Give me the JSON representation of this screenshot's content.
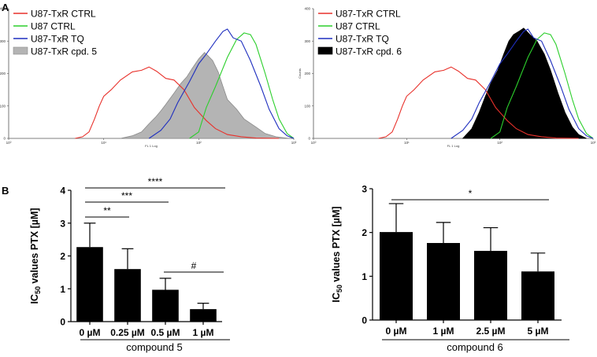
{
  "panel_labels": {
    "a": "A",
    "b": "B"
  },
  "chart_data": [
    {
      "type": "line",
      "panel": "A",
      "ylabel": "Counts",
      "xlabel": "FL 1 Log",
      "xscale": "log",
      "xlim": [
        1,
        1000
      ],
      "ylim": [
        0,
        400
      ],
      "x_ticks": [
        "10⁰",
        "10¹",
        "10²",
        "10³"
      ],
      "y_ticks": [
        "0",
        "100",
        "200",
        "300",
        "400"
      ],
      "legend_position": "top-left",
      "series": [
        {
          "name": "U87-TxR CTRL",
          "color": "#e8312b",
          "fill": false,
          "points": [
            [
              5,
              0
            ],
            [
              6,
              5
            ],
            [
              7,
              20
            ],
            [
              8,
              60
            ],
            [
              9,
              100
            ],
            [
              10,
              130
            ],
            [
              12,
              150
            ],
            [
              15,
              180
            ],
            [
              20,
              205
            ],
            [
              25,
              210
            ],
            [
              30,
              220
            ],
            [
              36,
              207
            ],
            [
              45,
              185
            ],
            [
              55,
              180
            ],
            [
              70,
              150
            ],
            [
              90,
              95
            ],
            [
              120,
              55
            ],
            [
              150,
              30
            ],
            [
              200,
              12
            ],
            [
              280,
              5
            ],
            [
              400,
              1
            ],
            [
              700,
              0
            ]
          ]
        },
        {
          "name": "U87 CTRL",
          "color": "#2ccf2c",
          "fill": false,
          "points": [
            [
              80,
              0
            ],
            [
              100,
              20
            ],
            [
              120,
              95
            ],
            [
              150,
              160
            ],
            [
              200,
              250
            ],
            [
              250,
              305
            ],
            [
              300,
              325
            ],
            [
              350,
              320
            ],
            [
              400,
              290
            ],
            [
              500,
              200
            ],
            [
              600,
              120
            ],
            [
              700,
              60
            ],
            [
              850,
              15
            ],
            [
              1000,
              0
            ]
          ]
        },
        {
          "name": "U87-TxR TQ",
          "color": "#1f2fbf",
          "fill": false,
          "points": [
            [
              30,
              0
            ],
            [
              40,
              25
            ],
            [
              50,
              60
            ],
            [
              60,
              110
            ],
            [
              80,
              175
            ],
            [
              100,
              230
            ],
            [
              120,
              260
            ],
            [
              150,
              300
            ],
            [
              180,
              330
            ],
            [
              200,
              337
            ],
            [
              230,
              310
            ],
            [
              280,
              300
            ],
            [
              350,
              240
            ],
            [
              450,
              160
            ],
            [
              550,
              90
            ],
            [
              700,
              30
            ],
            [
              850,
              8
            ],
            [
              1000,
              0
            ]
          ]
        },
        {
          "name": "U87-TxR cpd. 5",
          "color": "#b4b4b4",
          "fill": true,
          "points": [
            [
              15,
              0
            ],
            [
              20,
              8
            ],
            [
              25,
              20
            ],
            [
              30,
              45
            ],
            [
              35,
              65
            ],
            [
              40,
              85
            ],
            [
              45,
              105
            ],
            [
              55,
              140
            ],
            [
              65,
              170
            ],
            [
              75,
              190
            ],
            [
              85,
              215
            ],
            [
              100,
              245
            ],
            [
              115,
              265
            ],
            [
              125,
              255
            ],
            [
              140,
              240
            ],
            [
              160,
              205
            ],
            [
              180,
              160
            ],
            [
              200,
              120
            ],
            [
              250,
              90
            ],
            [
              300,
              60
            ],
            [
              400,
              35
            ],
            [
              500,
              15
            ],
            [
              650,
              5
            ],
            [
              900,
              0
            ]
          ]
        }
      ]
    },
    {
      "type": "line",
      "panel": "A",
      "ylabel": "Counts",
      "xlabel": "FL 1 Log",
      "xscale": "log",
      "xlim": [
        1,
        1000
      ],
      "ylim": [
        0,
        400
      ],
      "x_ticks": [
        "10⁰",
        "10¹",
        "10²",
        "10³"
      ],
      "y_ticks": [
        "0",
        "100",
        "200",
        "300",
        "400"
      ],
      "legend_position": "top-left",
      "series": [
        {
          "name": "U87-TxR CTRL",
          "color": "#e8312b",
          "fill": false,
          "points": [
            [
              5,
              0
            ],
            [
              6,
              5
            ],
            [
              7,
              20
            ],
            [
              8,
              60
            ],
            [
              9,
              100
            ],
            [
              10,
              130
            ],
            [
              12,
              150
            ],
            [
              15,
              180
            ],
            [
              20,
              205
            ],
            [
              25,
              210
            ],
            [
              30,
              220
            ],
            [
              36,
              207
            ],
            [
              45,
              185
            ],
            [
              55,
              180
            ],
            [
              70,
              150
            ],
            [
              90,
              95
            ],
            [
              120,
              55
            ],
            [
              150,
              30
            ],
            [
              200,
              12
            ],
            [
              280,
              5
            ],
            [
              400,
              1
            ],
            [
              700,
              0
            ]
          ]
        },
        {
          "name": "U87 CTRL",
          "color": "#2ccf2c",
          "fill": false,
          "points": [
            [
              80,
              0
            ],
            [
              100,
              20
            ],
            [
              120,
              95
            ],
            [
              150,
              160
            ],
            [
              200,
              250
            ],
            [
              250,
              305
            ],
            [
              300,
              325
            ],
            [
              350,
              320
            ],
            [
              400,
              290
            ],
            [
              500,
              200
            ],
            [
              600,
              120
            ],
            [
              700,
              60
            ],
            [
              850,
              15
            ],
            [
              1000,
              0
            ]
          ]
        },
        {
          "name": "U87-TxR TQ",
          "color": "#1f2fbf",
          "fill": false,
          "points": [
            [
              30,
              0
            ],
            [
              40,
              25
            ],
            [
              50,
              60
            ],
            [
              60,
              110
            ],
            [
              80,
              175
            ],
            [
              100,
              230
            ],
            [
              120,
              260
            ],
            [
              150,
              300
            ],
            [
              180,
              330
            ],
            [
              200,
              337
            ],
            [
              230,
              310
            ],
            [
              280,
              300
            ],
            [
              350,
              240
            ],
            [
              450,
              160
            ],
            [
              550,
              90
            ],
            [
              700,
              30
            ],
            [
              850,
              8
            ],
            [
              1000,
              0
            ]
          ]
        },
        {
          "name": "U87-TxR cpd. 6",
          "color": "#000000",
          "fill": true,
          "points": [
            [
              40,
              0
            ],
            [
              50,
              30
            ],
            [
              60,
              80
            ],
            [
              70,
              130
            ],
            [
              80,
              170
            ],
            [
              95,
              210
            ],
            [
              110,
              260
            ],
            [
              125,
              300
            ],
            [
              140,
              320
            ],
            [
              160,
              330
            ],
            [
              180,
              340
            ],
            [
              210,
              320
            ],
            [
              250,
              300
            ],
            [
              300,
              260
            ],
            [
              350,
              210
            ],
            [
              420,
              140
            ],
            [
              500,
              80
            ],
            [
              600,
              35
            ],
            [
              700,
              12
            ],
            [
              850,
              0
            ]
          ]
        }
      ]
    },
    {
      "type": "bar",
      "panel": "B",
      "ylabel": "IC50 values PTX [µM]",
      "ylabel_main": "IC",
      "ylabel_sub": "50",
      "ylabel_rest": " values PTX [µM]",
      "xlabel": "compound 5",
      "categories": [
        "0 µM",
        "0.25 µM",
        "0.5 µM",
        "1 µM"
      ],
      "values": [
        2.27,
        1.6,
        0.97,
        0.38
      ],
      "errors": [
        0.73,
        0.62,
        0.35,
        0.18
      ],
      "ylim": [
        0,
        4
      ],
      "y_ticks": [
        "0",
        "1",
        "2",
        "3",
        "4"
      ],
      "bar_color": "#000000",
      "significance": [
        {
          "from": 0,
          "to": 1,
          "label": "**"
        },
        {
          "from": 0,
          "to": 2,
          "label": "***"
        },
        {
          "from": 0,
          "to": 3,
          "label": "****"
        },
        {
          "from": 2,
          "to": 3,
          "label": "#"
        }
      ]
    },
    {
      "type": "bar",
      "panel": "B",
      "ylabel": "IC50 values PTX [µM]",
      "ylabel_main": "IC",
      "ylabel_sub": "50",
      "ylabel_rest": " values PTX [µM]",
      "xlabel": "compound 6",
      "categories": [
        "0 µM",
        "1 µM",
        "2.5 µM",
        "5 µM"
      ],
      "values": [
        2.01,
        1.76,
        1.58,
        1.11
      ],
      "errors": [
        0.65,
        0.47,
        0.53,
        0.42
      ],
      "ylim": [
        0,
        3
      ],
      "y_ticks": [
        "0",
        "1",
        "2",
        "3"
      ],
      "bar_color": "#000000",
      "significance": [
        {
          "from": 0,
          "to": 3,
          "label": "*"
        }
      ]
    }
  ]
}
